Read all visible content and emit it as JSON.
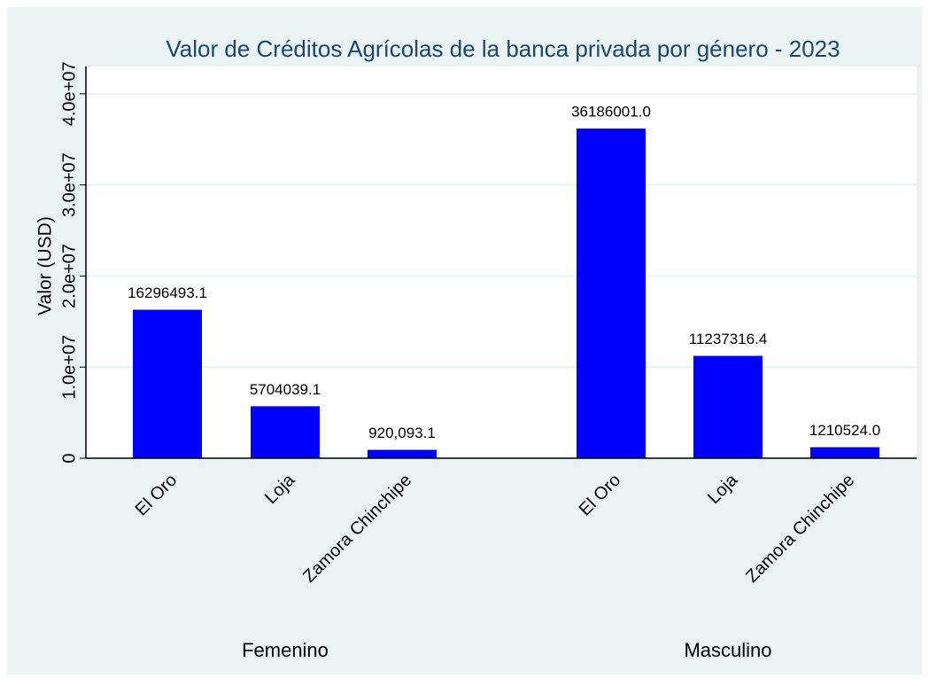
{
  "chart_data": {
    "type": "bar",
    "title": "Valor de Créditos Agrícolas de la banca privada por género - 2023",
    "ylabel": "Valor (USD)",
    "color": "#0000ff",
    "grid": true,
    "ylim": [
      0,
      43000000
    ],
    "yticks": [
      0,
      {
        "value": 10000000,
        "label": "1.0e+07"
      },
      {
        "value": 20000000,
        "label": "2.0e+07"
      },
      {
        "value": 30000000,
        "label": "3.0e+07"
      },
      {
        "value": 40000000,
        "label": "4.0e+07"
      }
    ],
    "groups": [
      {
        "name": "Femenino",
        "categories": [
          "El Oro",
          "Loja",
          "Zamora Chinchipe"
        ],
        "values": [
          16296493.1,
          5704039.1,
          920093.1
        ],
        "value_labels": [
          "16296493.1",
          "5704039.1",
          "920,093.1"
        ]
      },
      {
        "name": "Masculino",
        "categories": [
          "El Oro",
          "Loja",
          "Zamora Chinchipe"
        ],
        "values": [
          36186001,
          11237316.4,
          1210524
        ],
        "value_labels": [
          "36186001.0",
          "11237316.4",
          "1210524.0"
        ]
      }
    ]
  }
}
